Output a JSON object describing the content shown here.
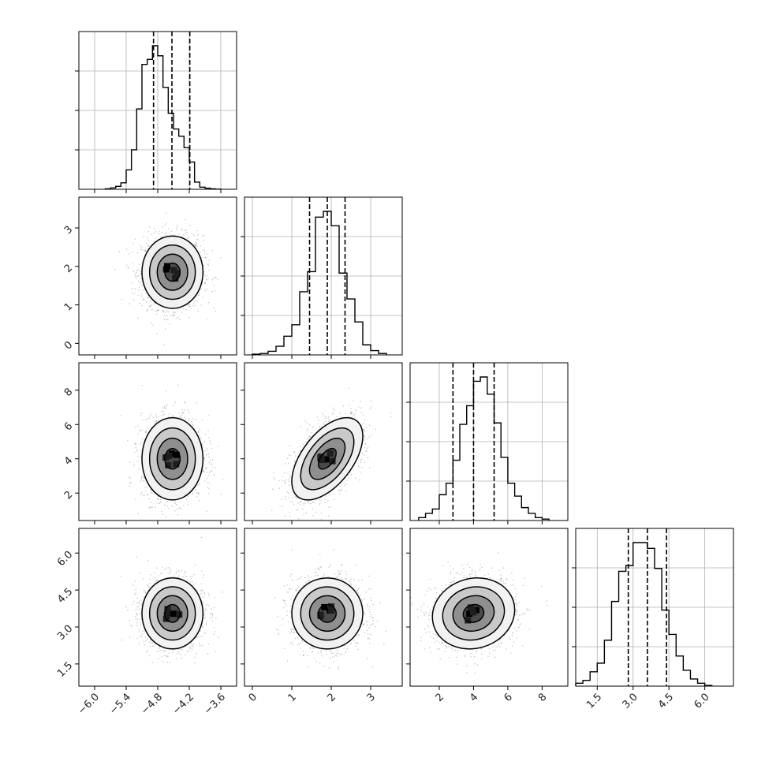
{
  "chart_data": {
    "type": "corner",
    "params": [
      {
        "xlim": [
          -6.3,
          -3.3
        ],
        "ticks": [
          -6.0,
          -5.4,
          -4.8,
          -4.2,
          -3.6
        ],
        "tick_labels": [
          "−6.0",
          "−5.4",
          "−4.8",
          "−4.2",
          "−3.6"
        ],
        "quantiles": [
          -4.88,
          -4.53,
          -4.19
        ],
        "hist_edges": [
          -5.8,
          -5.7,
          -5.6,
          -5.5,
          -5.4,
          -5.3,
          -5.2,
          -5.1,
          -5.0,
          -4.9,
          -4.8,
          -4.7,
          -4.6,
          -4.5,
          -4.4,
          -4.3,
          -4.2,
          -4.1,
          -4.0,
          -3.9,
          -3.8,
          -3.7,
          -3.6
        ],
        "hist_counts": [
          0.3,
          0.9,
          2.0,
          4.5,
          13.5,
          27.5,
          56,
          87,
          90.5,
          100,
          93,
          71,
          53,
          42,
          37,
          29,
          19,
          5,
          1.5,
          0.8,
          0.3,
          0.1
        ]
      },
      {
        "xlim": [
          -0.2,
          3.8
        ],
        "ylim": [
          -0.3,
          3.8
        ],
        "ticks": [
          0,
          1,
          2,
          3
        ],
        "tick_labels": [
          "0",
          "1",
          "2",
          "3"
        ],
        "quantiles": [
          1.45,
          1.9,
          2.35
        ],
        "hist_edges": [
          -0.0,
          0.2,
          0.4,
          0.6,
          0.8,
          1.0,
          1.2,
          1.4,
          1.6,
          1.8,
          2.0,
          2.2,
          2.4,
          2.6,
          2.8,
          3.0,
          3.2,
          3.4
        ],
        "hist_counts": [
          0.5,
          1.0,
          2.5,
          6.0,
          13,
          21,
          44,
          58,
          96,
          100,
          90,
          57,
          39,
          23,
          7,
          3,
          1
        ]
      },
      {
        "xlim": [
          0.3,
          9.5
        ],
        "ylim": [
          0.4,
          9.6
        ],
        "ticks": [
          2,
          4,
          6,
          8
        ],
        "tick_labels": [
          "2",
          "4",
          "6",
          "8"
        ],
        "quantiles": [
          2.8,
          4.0,
          5.2
        ],
        "hist_edges": [
          0.8,
          1.2,
          1.6,
          2.0,
          2.4,
          2.8,
          3.2,
          3.6,
          4.0,
          4.4,
          4.8,
          5.2,
          5.6,
          6.0,
          6.4,
          6.8,
          7.2,
          7.6,
          8.0,
          8.4
        ],
        "hist_counts": [
          2,
          5,
          8,
          18,
          26,
          42,
          67,
          80,
          97,
          100,
          88,
          68,
          44,
          26,
          17,
          9,
          5,
          2,
          1
        ]
      },
      {
        "xlim": [
          0.6,
          7.2
        ],
        "ylim": [
          0.6,
          7.0
        ],
        "ticks": [
          1.5,
          3.0,
          4.5,
          6.0
        ],
        "tick_labels": [
          "1.5",
          "3.0",
          "4.5",
          "6.0"
        ],
        "quantiles": [
          2.8,
          3.6,
          4.4
        ],
        "hist_edges": [
          0.6,
          0.9,
          1.2,
          1.5,
          1.8,
          2.1,
          2.4,
          2.7,
          3.0,
          3.3,
          3.6,
          3.9,
          4.2,
          4.5,
          4.8,
          5.1,
          5.4,
          5.7,
          6.0,
          6.3
        ],
        "hist_counts": [
          2,
          4,
          10,
          16,
          32,
          59,
          80,
          84,
          100,
          100,
          96,
          82,
          53,
          36,
          21,
          11,
          5,
          2,
          0.5
        ]
      }
    ],
    "pairs": [
      {
        "i": 1,
        "j": 0,
        "mean": [
          -4.52,
          1.85
        ],
        "sd": [
          0.29,
          0.47
        ],
        "corr": 0.0
      },
      {
        "i": 2,
        "j": 0,
        "mean": [
          -4.52,
          4.0
        ],
        "sd": [
          0.29,
          1.2
        ],
        "corr": 0.0
      },
      {
        "i": 2,
        "j": 1,
        "mean": [
          1.9,
          4.0
        ],
        "sd": [
          0.45,
          1.2
        ],
        "corr": 0.55
      },
      {
        "i": 3,
        "j": 0,
        "mean": [
          -4.52,
          3.55
        ],
        "sd": [
          0.29,
          0.72
        ],
        "corr": 0.0
      },
      {
        "i": 3,
        "j": 1,
        "mean": [
          1.9,
          3.55
        ],
        "sd": [
          0.45,
          0.72
        ],
        "corr": 0.0
      },
      {
        "i": 3,
        "j": 2,
        "mean": [
          4.0,
          3.55
        ],
        "sd": [
          1.2,
          0.72
        ],
        "corr": 0.1
      }
    ],
    "contour_levels_sigma": [
      0.5,
      1.0,
      1.5,
      2.0
    ],
    "grid": true,
    "colors": {
      "line": "#000000",
      "grid": "#b0b0b0",
      "scatter": "#8c8c8c",
      "density_max": "#000000"
    }
  }
}
